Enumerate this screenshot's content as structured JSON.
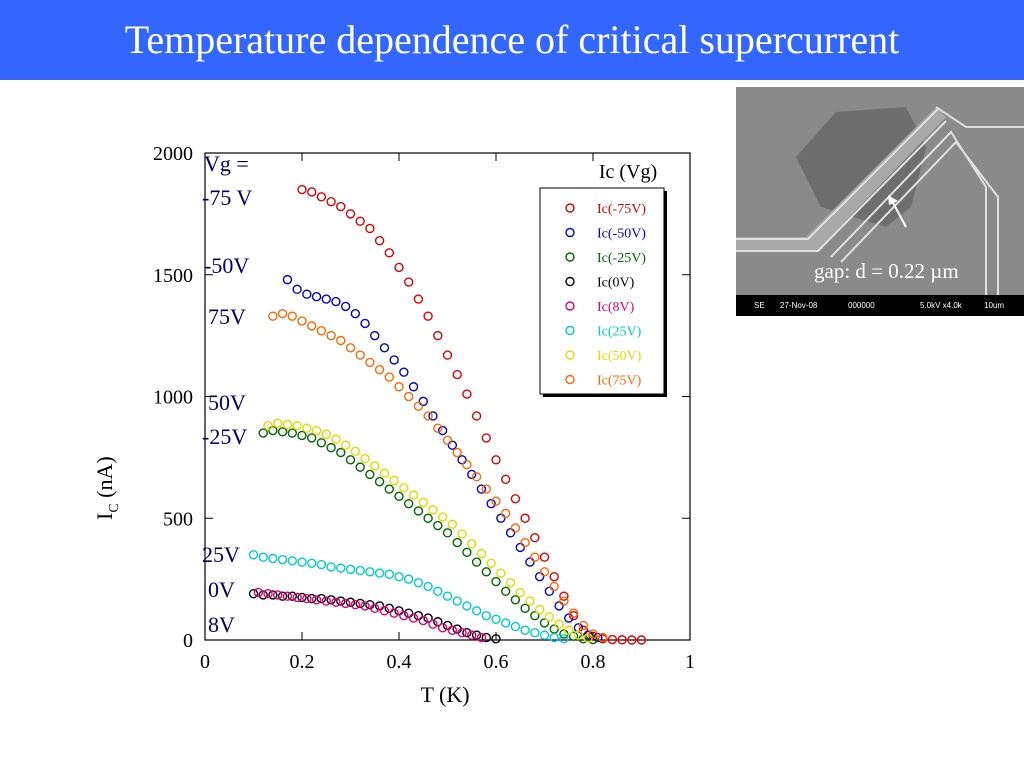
{
  "slide": {
    "title": "Temperature dependence of critical supercurrent"
  },
  "annotations": {
    "vg_header": "Vg =",
    "m75": "-75 V",
    "m50": "-50V",
    "p75": "75V",
    "p50": "50V",
    "m25": "-25V",
    "p25": "25V",
    "z0": "0V",
    "p8": "8V"
  },
  "sem_image": {
    "caption": "gap: d = 0.22 µm",
    "bar": {
      "mode": "SE",
      "date": "27-Nov-08",
      "number": "000000",
      "settings": "5.0kV x4.0k",
      "scale": "10um"
    }
  },
  "chart_data": {
    "type": "scatter",
    "title": "Ic (Vg)",
    "xlabel": "T (K)",
    "ylabel": "I",
    "ylabel_sub": "C",
    "ylabel_unit": "(nA)",
    "xlim": [
      0,
      1
    ],
    "ylim": [
      0,
      2000
    ],
    "xticks": [
      0,
      0.2,
      0.4,
      0.6,
      0.8,
      1
    ],
    "xtick_labels": [
      "0",
      "0.2",
      "0.4",
      "0.6",
      "0.8",
      "1"
    ],
    "yticks": [
      0,
      500,
      1000,
      1500,
      2000
    ],
    "ytick_labels": [
      "0",
      "500",
      "1000",
      "1500",
      "2000"
    ],
    "legend_position": "top-right",
    "marker": "open-circle",
    "series": [
      {
        "name": "Ic(-75V)",
        "color": "#dd0000",
        "x": [
          0.2,
          0.22,
          0.24,
          0.26,
          0.28,
          0.3,
          0.32,
          0.34,
          0.36,
          0.38,
          0.4,
          0.42,
          0.44,
          0.46,
          0.48,
          0.5,
          0.52,
          0.54,
          0.56,
          0.58,
          0.6,
          0.62,
          0.64,
          0.66,
          0.68,
          0.7,
          0.72,
          0.74,
          0.76,
          0.78,
          0.8,
          0.82,
          0.84,
          0.86,
          0.88,
          0.9
        ],
        "y": [
          1850,
          1840,
          1820,
          1800,
          1780,
          1750,
          1720,
          1690,
          1640,
          1590,
          1530,
          1470,
          1400,
          1330,
          1250,
          1170,
          1090,
          1010,
          920,
          830,
          740,
          660,
          580,
          500,
          420,
          340,
          260,
          180,
          100,
          40,
          15,
          5,
          2,
          1,
          0,
          0
        ]
      },
      {
        "name": "Ic(-50V)",
        "color": "#0000cc",
        "x": [
          0.17,
          0.19,
          0.21,
          0.23,
          0.25,
          0.27,
          0.29,
          0.31,
          0.33,
          0.35,
          0.37,
          0.39,
          0.41,
          0.43,
          0.45,
          0.47,
          0.49,
          0.51,
          0.53,
          0.55,
          0.57,
          0.59,
          0.61,
          0.63,
          0.65,
          0.67,
          0.69,
          0.71,
          0.73,
          0.75,
          0.77,
          0.79,
          0.81
        ],
        "y": [
          1480,
          1440,
          1420,
          1410,
          1400,
          1390,
          1370,
          1340,
          1300,
          1250,
          1200,
          1150,
          1100,
          1040,
          980,
          920,
          860,
          800,
          740,
          680,
          620,
          560,
          500,
          440,
          380,
          320,
          260,
          200,
          140,
          90,
          50,
          20,
          10
        ]
      },
      {
        "name": "Ic(-25V)",
        "color": "#006600",
        "x": [
          0.12,
          0.14,
          0.16,
          0.18,
          0.2,
          0.22,
          0.24,
          0.26,
          0.28,
          0.3,
          0.32,
          0.34,
          0.36,
          0.38,
          0.4,
          0.42,
          0.44,
          0.46,
          0.48,
          0.5,
          0.52,
          0.54,
          0.56,
          0.58,
          0.6,
          0.62,
          0.64,
          0.66,
          0.68,
          0.7,
          0.72,
          0.74,
          0.76,
          0.78,
          0.8
        ],
        "y": [
          850,
          860,
          855,
          850,
          840,
          830,
          810,
          790,
          770,
          740,
          710,
          680,
          650,
          620,
          590,
          560,
          530,
          500,
          470,
          440,
          400,
          360,
          320,
          280,
          240,
          200,
          165,
          130,
          100,
          70,
          45,
          25,
          15,
          5,
          2
        ]
      },
      {
        "name": "Ic(0V)",
        "color": "#000000",
        "x": [
          0.1,
          0.12,
          0.14,
          0.16,
          0.18,
          0.2,
          0.22,
          0.24,
          0.26,
          0.28,
          0.3,
          0.32,
          0.34,
          0.36,
          0.38,
          0.4,
          0.42,
          0.44,
          0.46,
          0.48,
          0.5,
          0.52,
          0.54,
          0.56,
          0.58,
          0.6
        ],
        "y": [
          190,
          185,
          185,
          180,
          180,
          175,
          170,
          170,
          165,
          160,
          155,
          150,
          145,
          140,
          130,
          120,
          110,
          100,
          90,
          75,
          60,
          45,
          30,
          20,
          10,
          5
        ]
      },
      {
        "name": "Ic(8V)",
        "color": "#dd0077",
        "x": [
          0.11,
          0.13,
          0.15,
          0.17,
          0.19,
          0.21,
          0.23,
          0.25,
          0.27,
          0.29,
          0.31,
          0.33,
          0.35,
          0.37,
          0.39,
          0.41,
          0.43,
          0.45,
          0.47,
          0.49,
          0.51,
          0.53,
          0.55,
          0.57
        ],
        "y": [
          195,
          190,
          185,
          180,
          175,
          170,
          165,
          160,
          155,
          150,
          145,
          140,
          130,
          120,
          110,
          100,
          90,
          80,
          65,
          50,
          40,
          30,
          20,
          10
        ]
      },
      {
        "name": "Ic(25V)",
        "color": "#00cccc",
        "x": [
          0.1,
          0.12,
          0.14,
          0.16,
          0.18,
          0.2,
          0.22,
          0.24,
          0.26,
          0.28,
          0.3,
          0.32,
          0.34,
          0.36,
          0.38,
          0.4,
          0.42,
          0.44,
          0.46,
          0.48,
          0.5,
          0.52,
          0.54,
          0.56,
          0.58,
          0.6,
          0.62,
          0.64,
          0.66,
          0.68,
          0.7,
          0.72,
          0.74
        ],
        "y": [
          350,
          340,
          335,
          330,
          325,
          320,
          315,
          310,
          300,
          295,
          290,
          285,
          280,
          275,
          270,
          260,
          250,
          235,
          220,
          200,
          180,
          160,
          140,
          120,
          100,
          85,
          70,
          55,
          40,
          30,
          20,
          10,
          5
        ]
      },
      {
        "name": "Ic(50V)",
        "color": "#dddd00",
        "x": [
          0.13,
          0.15,
          0.17,
          0.19,
          0.21,
          0.23,
          0.25,
          0.27,
          0.29,
          0.31,
          0.33,
          0.35,
          0.37,
          0.39,
          0.41,
          0.43,
          0.45,
          0.47,
          0.49,
          0.51,
          0.53,
          0.55,
          0.57,
          0.59,
          0.61,
          0.63,
          0.65,
          0.67,
          0.69,
          0.71,
          0.73,
          0.75,
          0.77,
          0.79
        ],
        "y": [
          880,
          890,
          885,
          880,
          870,
          860,
          845,
          825,
          800,
          775,
          745,
          715,
          685,
          655,
          625,
          595,
          565,
          535,
          505,
          475,
          435,
          395,
          355,
          315,
          275,
          235,
          195,
          160,
          125,
          95,
          65,
          40,
          20,
          8
        ]
      },
      {
        "name": "Ic(75V)",
        "color": "#ff6600",
        "x": [
          0.14,
          0.16,
          0.18,
          0.2,
          0.22,
          0.24,
          0.26,
          0.28,
          0.3,
          0.32,
          0.34,
          0.36,
          0.38,
          0.4,
          0.42,
          0.44,
          0.46,
          0.48,
          0.5,
          0.52,
          0.54,
          0.56,
          0.58,
          0.6,
          0.62,
          0.64,
          0.66,
          0.68,
          0.7,
          0.72,
          0.74,
          0.76,
          0.78,
          0.8,
          0.82
        ],
        "y": [
          1330,
          1340,
          1330,
          1310,
          1290,
          1270,
          1250,
          1230,
          1200,
          1170,
          1140,
          1110,
          1080,
          1040,
          1000,
          960,
          920,
          870,
          820,
          770,
          720,
          670,
          620,
          570,
          520,
          460,
          400,
          340,
          280,
          220,
          160,
          110,
          60,
          25,
          10
        ]
      }
    ]
  }
}
